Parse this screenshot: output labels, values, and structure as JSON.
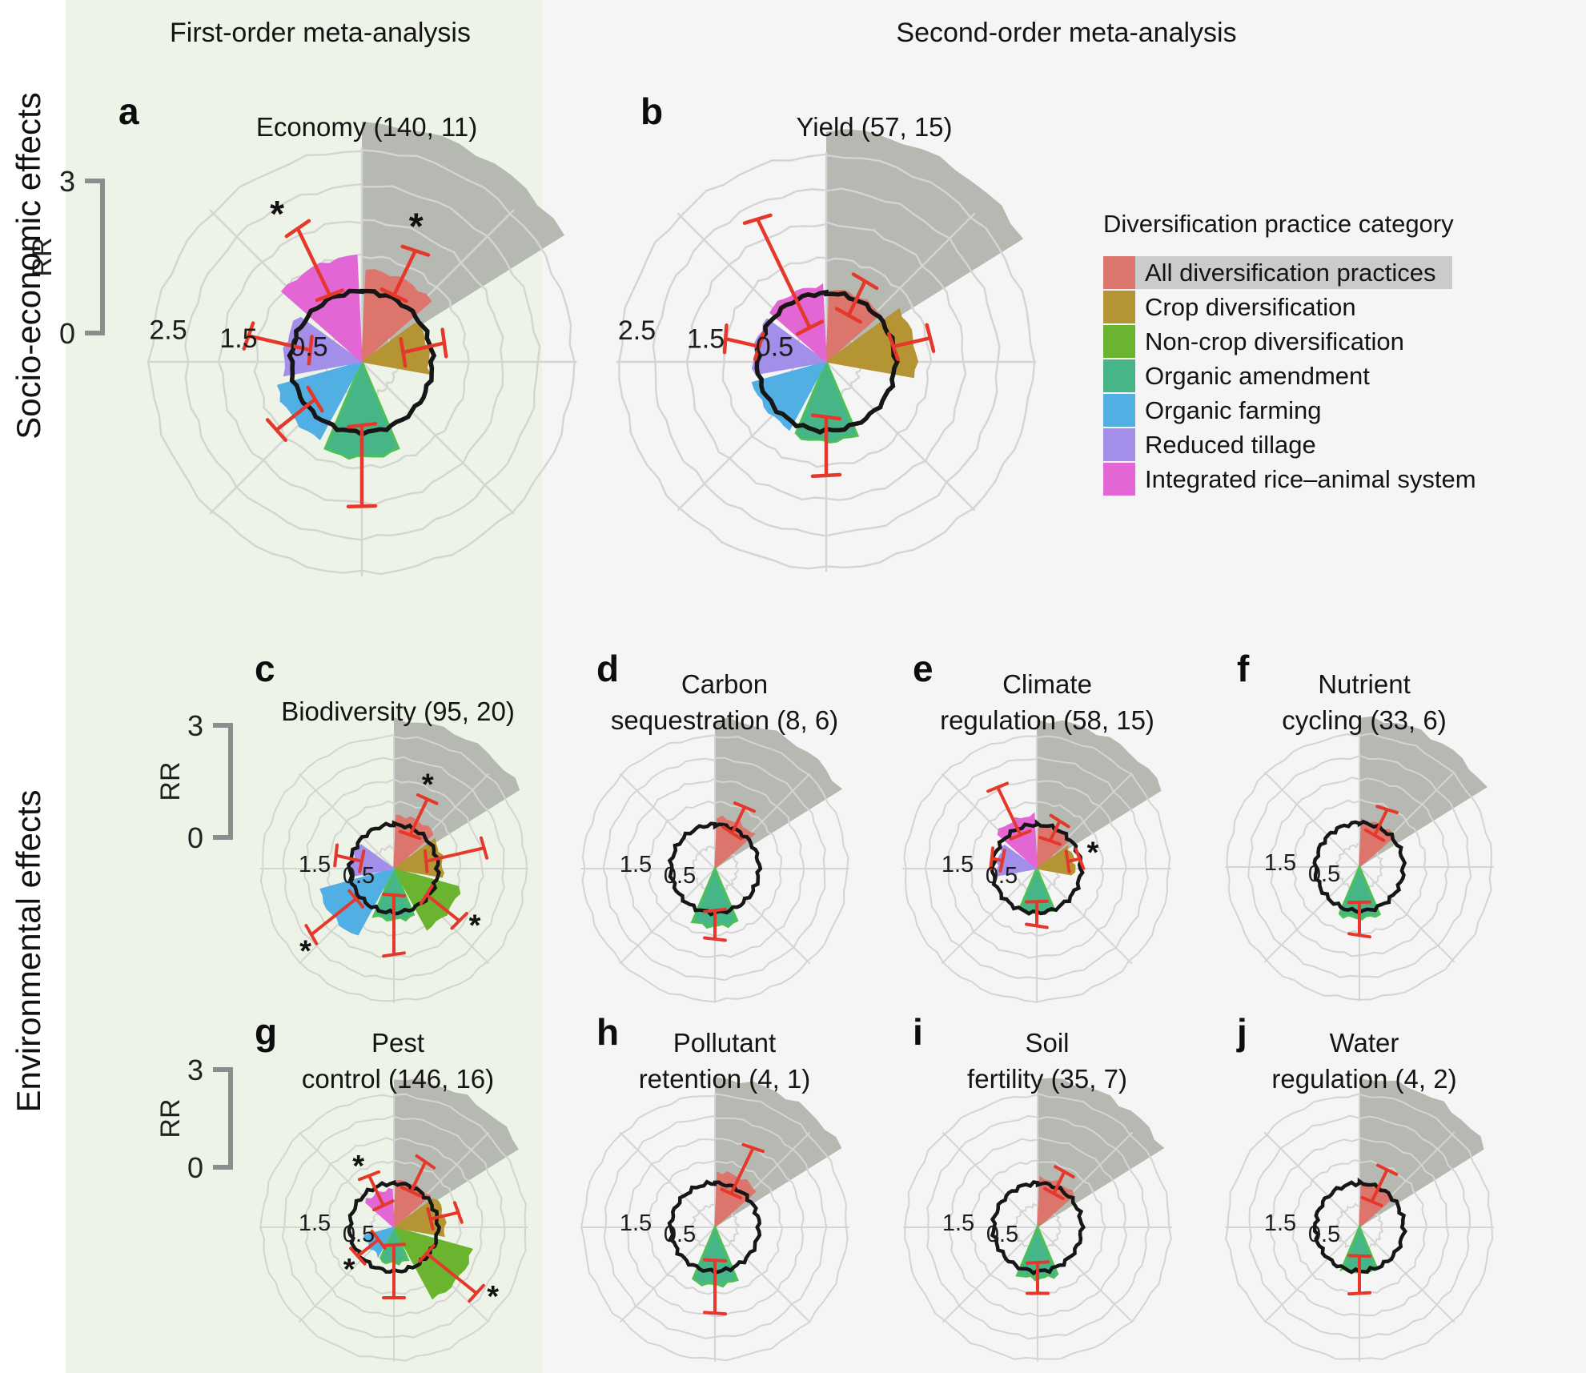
{
  "headers": {
    "first_order": "First-order meta-analysis",
    "second_order": "Second-order meta-analysis"
  },
  "row_labels": {
    "socio": "Socio-economic effects",
    "env": "Environmental effects"
  },
  "rr_axis": {
    "top": "3",
    "bottom": "0",
    "label": "RR"
  },
  "legend": {
    "title": "Diversification practice category",
    "items": [
      {
        "label": "All diversification practices",
        "color": "#dc766c",
        "highlighted": true
      },
      {
        "label": "Crop diversification",
        "color": "#b59434",
        "highlighted": false
      },
      {
        "label": "Non-crop diversification",
        "color": "#6ab42f",
        "highlighted": false
      },
      {
        "label": "Organic amendment",
        "color": "#46b588",
        "highlighted": false
      },
      {
        "label": "Organic farming",
        "color": "#52afe4",
        "highlighted": false
      },
      {
        "label": "Reduced tillage",
        "color": "#a38ee9",
        "highlighted": false
      },
      {
        "label": "Integrated rice–animal system",
        "color": "#e266d3",
        "highlighted": false
      }
    ]
  },
  "significance_marker": "*",
  "radial_ticks": {
    "large": [
      "0.5",
      "1.5",
      "2.5"
    ],
    "small": [
      "0.5",
      "1.5"
    ]
  },
  "categories": [
    {
      "id": "all",
      "label": "All diversification practices",
      "color": "#dc766c",
      "bearing_deg": 25.7
    },
    {
      "id": "crop",
      "label": "Crop diversification",
      "color": "#b59434",
      "bearing_deg": 77.1
    },
    {
      "id": "noncrop",
      "label": "Non-crop diversification",
      "color": "#6ab42f",
      "bearing_deg": 128.6
    },
    {
      "id": "oa",
      "label": "Organic amendment",
      "color": "#46b588",
      "bearing_deg": 180
    },
    {
      "id": "of",
      "label": "Organic farming",
      "color": "#52afe4",
      "bearing_deg": 231.4
    },
    {
      "id": "rt",
      "label": "Reduced tillage",
      "color": "#a38ee9",
      "bearing_deg": 282.9
    },
    {
      "id": "ir",
      "label": "Integrated rice–animal system",
      "color": "#e266d3",
      "bearing_deg": 334.3
    }
  ],
  "chart_data": [
    {
      "panel": "a",
      "letter": "a",
      "type": "rose",
      "size": "large",
      "rr_reference": 1,
      "rmax": 3,
      "title_lines": [
        "Economy (140, 11)"
      ],
      "wedges": [
        {
          "category": "all",
          "rr": 1.3,
          "ci": [
            1.05,
            1.75
          ],
          "sig": true
        },
        {
          "category": "crop",
          "rr": 0.95,
          "ci": [
            0.6,
            1.2
          ],
          "sig": false
        },
        {
          "category": "oa",
          "rr": 1.35,
          "ci": [
            0.9,
            2.05
          ],
          "sig": false
        },
        {
          "category": "of",
          "rr": 1.25,
          "ci": [
            0.85,
            1.55
          ],
          "sig": false
        },
        {
          "category": "rt",
          "rr": 1.1,
          "ci": [
            0.75,
            1.65
          ],
          "sig": false
        },
        {
          "category": "ir",
          "rr": 1.5,
          "ci": [
            1.05,
            2.1
          ],
          "sig": true
        }
      ]
    },
    {
      "panel": "b",
      "letter": "b",
      "type": "rose",
      "size": "large",
      "rr_reference": 1,
      "rmax": 3,
      "title_lines": [
        "Yield (57, 15)"
      ],
      "wedges": [
        {
          "category": "all",
          "rr": 1.05,
          "ci": [
            0.75,
            1.3
          ],
          "sig": false
        },
        {
          "category": "crop",
          "rr": 1.3,
          "ci": [
            1.0,
            1.55
          ],
          "sig": false
        },
        {
          "category": "oa",
          "rr": 1.15,
          "ci": [
            0.8,
            1.65
          ],
          "sig": false
        },
        {
          "category": "of",
          "rr": 1.1,
          "ci": null,
          "sig": false
        },
        {
          "category": "rt",
          "rr": 1.05,
          "ci": [
            1.0,
            1.5
          ],
          "sig": false
        },
        {
          "category": "ir",
          "rr": 1.1,
          "ci": [
            0.55,
            2.3
          ],
          "sig": false
        }
      ]
    },
    {
      "panel": "c",
      "letter": "c",
      "type": "rose",
      "size": "small",
      "rr_reference": 1,
      "rmax": 3,
      "title_lines": [
        "Biodiversity (95, 20)"
      ],
      "wedges": [
        {
          "category": "all",
          "rr": 1.2,
          "ci": [
            0.85,
            1.75
          ],
          "sig": true
        },
        {
          "category": "crop",
          "rr": 1.1,
          "ci": [
            0.75,
            2.1
          ],
          "sig": false
        },
        {
          "category": "noncrop",
          "rr": 1.55,
          "ci": [
            0.95,
            1.9
          ],
          "sig": true
        },
        {
          "category": "oa",
          "rr": 1.15,
          "ci": [
            0.6,
            1.95
          ],
          "sig": false
        },
        {
          "category": "of",
          "rr": 1.75,
          "ci": [
            1.1,
            2.4
          ],
          "sig": true
        },
        {
          "category": "rt",
          "rr": 0.95,
          "ci": [
            0.75,
            1.35
          ],
          "sig": false
        }
      ]
    },
    {
      "panel": "d",
      "letter": "d",
      "type": "rose",
      "size": "small",
      "rr_reference": 1,
      "rmax": 3,
      "title_lines": [
        "Carbon",
        "sequestration (8, 6)"
      ],
      "wedges": [
        {
          "category": "all",
          "rr": 1.15,
          "ci": [
            0.9,
            1.55
          ],
          "sig": false
        },
        {
          "category": "oa",
          "rr": 1.3,
          "ci": [
            0.95,
            1.6
          ],
          "sig": false
        }
      ]
    },
    {
      "panel": "e",
      "letter": "e",
      "type": "rose",
      "size": "small",
      "rr_reference": 1,
      "rmax": 3,
      "title_lines": [
        "Climate",
        "regulation (58, 15)"
      ],
      "wedges": [
        {
          "category": "all",
          "rr": 0.95,
          "ci": [
            0.7,
            1.2
          ],
          "sig": false
        },
        {
          "category": "crop",
          "rr": 0.85,
          "ci": [
            0.72,
            1.0
          ],
          "sig": true
        },
        {
          "category": "oa",
          "rr": 1.0,
          "ci": [
            0.75,
            1.3
          ],
          "sig": false
        },
        {
          "category": "rt",
          "rr": 0.9,
          "ci": [
            0.8,
            1.05
          ],
          "sig": false
        },
        {
          "category": "ir",
          "rr": 1.2,
          "ci": [
            0.85,
            2.05
          ],
          "sig": false
        }
      ]
    },
    {
      "panel": "f",
      "letter": "f",
      "type": "rose",
      "size": "small",
      "rr_reference": 1,
      "rmax": 3,
      "title_lines": [
        "Nutrient",
        "cycling (33, 6)"
      ],
      "wedges": [
        {
          "category": "all",
          "rr": 1.05,
          "ci": [
            0.8,
            1.45
          ],
          "sig": false
        },
        {
          "category": "oa",
          "rr": 1.15,
          "ci": [
            0.8,
            1.55
          ],
          "sig": false
        }
      ]
    },
    {
      "panel": "g",
      "letter": "g",
      "type": "rose",
      "size": "small",
      "rr_reference": 1,
      "rmax": 3,
      "title_lines": [
        "Pest",
        "control (146, 16)"
      ],
      "wedges": [
        {
          "category": "all",
          "rr": 1.05,
          "ci": [
            0.9,
            1.65
          ],
          "sig": false
        },
        {
          "category": "crop",
          "rr": 1.15,
          "ci": [
            0.85,
            1.5
          ],
          "sig": false
        },
        {
          "category": "noncrop",
          "rr": 1.85,
          "ci": [
            0.95,
            2.4
          ],
          "sig": true
        },
        {
          "category": "oa",
          "rr": 0.8,
          "ci": [
            0.4,
            1.6
          ],
          "sig": false
        },
        {
          "category": "of",
          "rr": 0.7,
          "ci": [
            0.45,
            1.05
          ],
          "sig": true
        },
        {
          "category": "ir",
          "rr": 0.85,
          "ci": [
            0.55,
            1.3
          ],
          "sig": true
        }
      ]
    },
    {
      "panel": "h",
      "letter": "h",
      "type": "rose",
      "size": "small",
      "rr_reference": 1,
      "rmax": 3,
      "title_lines": [
        "Pollutant",
        "retention (4, 1)"
      ],
      "wedges": [
        {
          "category": "all",
          "rr": 1.25,
          "ci": [
            0.85,
            2.0
          ],
          "sig": false
        },
        {
          "category": "oa",
          "rr": 1.3,
          "ci": [
            0.75,
            1.95
          ],
          "sig": false
        }
      ]
    },
    {
      "panel": "i",
      "letter": "i",
      "type": "rose",
      "size": "small",
      "rr_reference": 1,
      "rmax": 3,
      "title_lines": [
        "Soil",
        "fertility (35, 7)"
      ],
      "wedges": [
        {
          "category": "all",
          "rr": 1.1,
          "ci": [
            0.85,
            1.4
          ],
          "sig": false
        },
        {
          "category": "oa",
          "rr": 1.15,
          "ci": [
            0.8,
            1.5
          ],
          "sig": false
        }
      ]
    },
    {
      "panel": "j",
      "letter": "j",
      "type": "rose",
      "size": "small",
      "rr_reference": 1,
      "rmax": 3,
      "title_lines": [
        "Water",
        "regulation (4, 2)"
      ],
      "wedges": [
        {
          "category": "all",
          "rr": 1.0,
          "ci": [
            0.65,
            1.45
          ],
          "sig": false
        },
        {
          "category": "oa",
          "rr": 1.0,
          "ci": [
            0.65,
            1.5
          ],
          "sig": false
        }
      ]
    }
  ],
  "style": {
    "bg_first_order": "#edf3e6",
    "bg_second_order": "#f5f5f5",
    "grid_color": "#d4d4d4",
    "unit_circle_color": "#161616",
    "error_bar_color": "#e5382b",
    "sector_highlight_color": "#b6b9b1",
    "asterisk_color": "#111111",
    "bracket_color": "#8d8d8d"
  }
}
